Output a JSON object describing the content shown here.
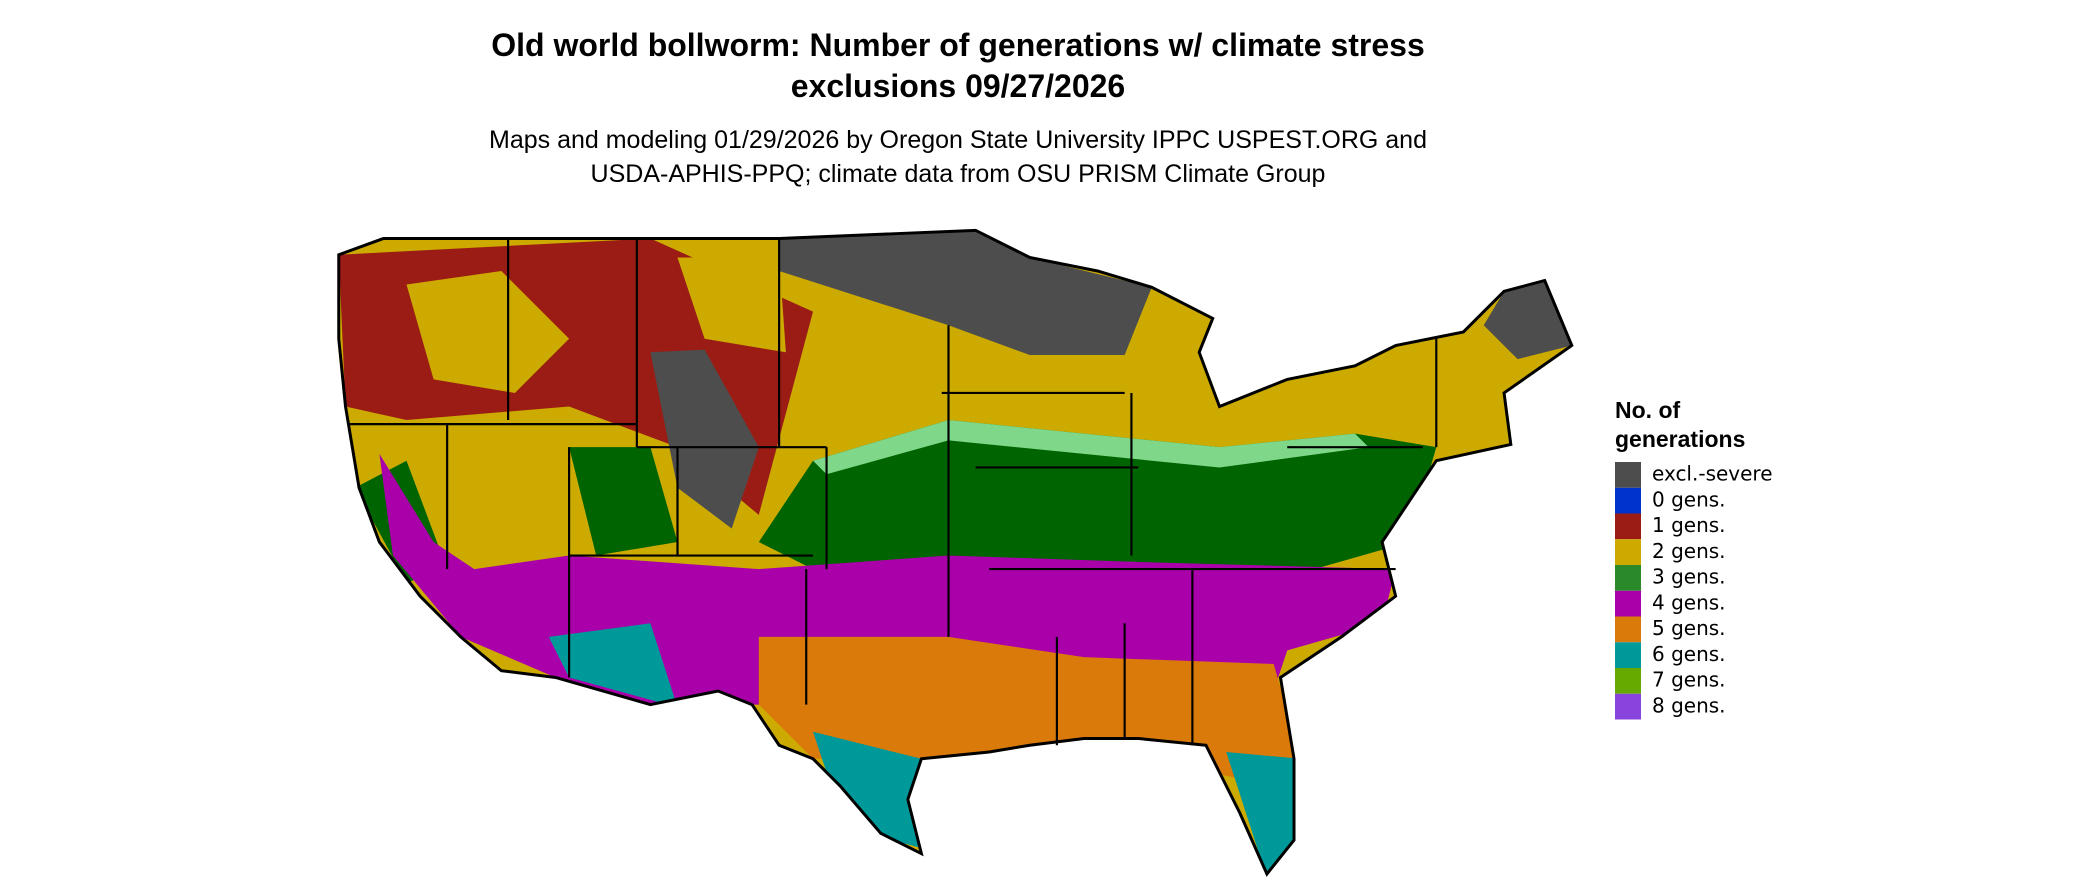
{
  "title": [
    "Old world bollworm: Number of generations w/ climate stress",
    "exclusions 09/27/2026"
  ],
  "subtitle": [
    "Maps and modeling 01/29/2026 by Oregon State University IPPC USPEST.ORG and",
    "USDA-APHIS-PPQ; climate data from OSU PRISM Climate Group"
  ],
  "legend": {
    "title": [
      "No. of",
      "generations"
    ],
    "items": [
      {
        "label": "excl.-severe",
        "color": "#4d4d4d"
      },
      {
        "label": "0 gens.",
        "color": "#0033cc"
      },
      {
        "label": "1 gens.",
        "color": "#9a1c14"
      },
      {
        "label": "2 gens.",
        "color": "#ccaa00"
      },
      {
        "label": "3 gens.",
        "color": "#2a8a2a"
      },
      {
        "label": "4 gens.",
        "color": "#aa00aa"
      },
      {
        "label": "5 gens.",
        "color": "#d97a0a"
      },
      {
        "label": "6 gens.",
        "color": "#009999"
      },
      {
        "label": "7 gens.",
        "color": "#66aa00"
      },
      {
        "label": "8 gens.",
        "color": "#8844dd"
      }
    ]
  }
}
